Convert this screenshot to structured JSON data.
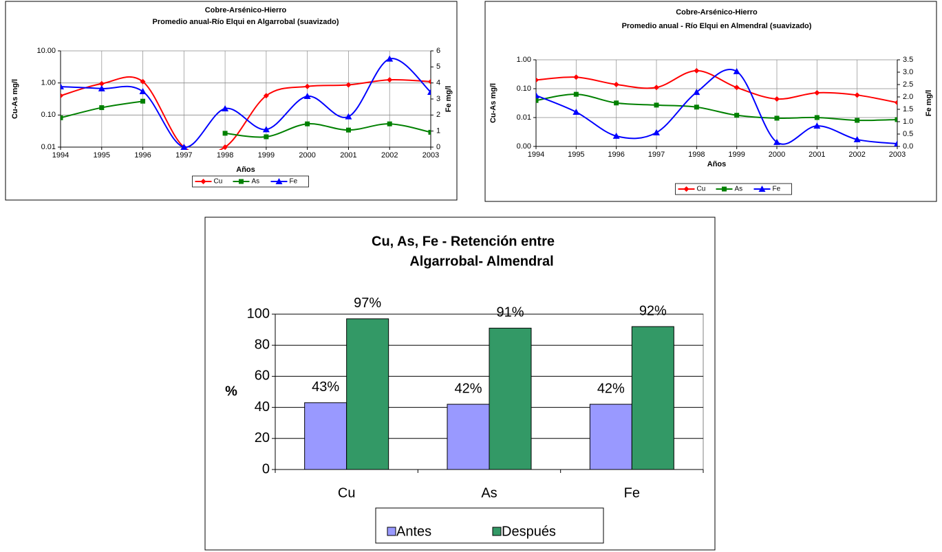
{
  "chart_data": [
    {
      "type": "line",
      "title": "Cobre-Arsénico-Hierro",
      "subtitle": "Promedio anual-Río Elqui en Algarrobal (suavizado)",
      "x_label": "Años",
      "y_label": "Cu-As mg/l",
      "y2_label": "Fe mg/l",
      "categories": [
        "1994",
        "1995",
        "1996",
        "1997",
        "1998",
        "1999",
        "2000",
        "2001",
        "2002",
        "2003"
      ],
      "log_scale": true,
      "smooth": true,
      "grid": true,
      "legend": "bottom",
      "ylim": [
        0.01,
        10
      ],
      "yticks": [
        0.01,
        {
          "value": 0.1,
          "label": "0.10"
        },
        {
          "value": 1,
          "label": "1.00"
        },
        {
          "value": 10,
          "label": "10.00"
        }
      ],
      "y2lim": [
        0,
        6
      ],
      "y2ticks": [
        0,
        1,
        2,
        3,
        4,
        5,
        6
      ],
      "series": [
        {
          "name": "Cu",
          "color": "#ff0000",
          "marker": "diamond",
          "values": [
            0.4,
            0.95,
            1.1,
            0.01,
            0.01,
            0.4,
            0.78,
            0.87,
            1.25,
            1.1
          ]
        },
        {
          "name": "As",
          "color": "#008000",
          "marker": "square",
          "values": [
            0.082,
            0.17,
            0.27,
            null,
            0.027,
            0.021,
            0.053,
            0.034,
            0.053,
            0.029
          ]
        },
        {
          "name": "Fe",
          "color": "#0000ff",
          "marker": "triangle",
          "axis": "y2",
          "values": [
            3.77,
            3.65,
            3.47,
            0,
            2.4,
            1.1,
            3.17,
            1.9,
            5.5,
            3.43
          ]
        }
      ]
    },
    {
      "type": "line",
      "title": "Cobre-Arsénico-Hierro",
      "subtitle": "Promedio anual - Río Elqui en Almendral (suavizado)",
      "x_label": "Años",
      "y_label": "Cu-As mg/l",
      "y2_label": "Fe mg/l",
      "categories": [
        "1994",
        "1995",
        "1996",
        "1997",
        "1998",
        "1999",
        "2000",
        "2001",
        "2002",
        "2003"
      ],
      "log_scale": true,
      "smooth": true,
      "grid": true,
      "legend": "bottom",
      "ylim": [
        0.001,
        1
      ],
      "yticks": [
        {
          "value": 0.001,
          "label": "0.00"
        },
        0.01,
        {
          "value": 0.1,
          "label": "0.10"
        },
        {
          "value": 1,
          "label": "1.00"
        }
      ],
      "y2lim": [
        0,
        3.5
      ],
      "y2ticks": [
        {
          "value": 0,
          "label": "0.0"
        },
        0.5,
        {
          "value": 1,
          "label": "1.0"
        },
        1.5,
        {
          "value": 2,
          "label": "2.0"
        },
        2.5,
        {
          "value": 3,
          "label": "3.0"
        },
        3.5
      ],
      "series": [
        {
          "name": "Cu",
          "color": "#ff0000",
          "marker": "diamond",
          "values": [
            0.2,
            0.25,
            0.14,
            0.11,
            0.42,
            0.11,
            0.044,
            0.072,
            0.06,
            0.033
          ]
        },
        {
          "name": "As",
          "color": "#008000",
          "marker": "square",
          "values": [
            0.039,
            0.064,
            0.032,
            0.027,
            0.023,
            0.012,
            0.0095,
            0.01,
            0.008,
            0.0085
          ]
        },
        {
          "name": "Fe",
          "color": "#0000ff",
          "marker": "triangle",
          "axis": "y2",
          "values": [
            2.06,
            1.39,
            0.42,
            0.56,
            2.19,
            3.03,
            0.17,
            0.83,
            0.28,
            0.11
          ]
        }
      ]
    },
    {
      "type": "bar",
      "title": [
        "Cu, As, Fe - Retención entre",
        "Algarrobal- Almendral"
      ],
      "y_label": "%",
      "categories": [
        "Cu",
        "As",
        "Fe"
      ],
      "ylim": [
        0,
        100
      ],
      "yticks": [
        0,
        20,
        40,
        60,
        80,
        100
      ],
      "grid": true,
      "legend": "bottom",
      "series": [
        {
          "name": "Antes",
          "color": "#9999ff",
          "values": [
            43,
            42,
            42
          ],
          "value_labels": [
            "43%",
            "42%",
            "42%"
          ]
        },
        {
          "name": "Después",
          "color": "#339966",
          "values": [
            97,
            91,
            92
          ],
          "value_labels": [
            "97%",
            "91%",
            "92%"
          ]
        }
      ]
    }
  ]
}
